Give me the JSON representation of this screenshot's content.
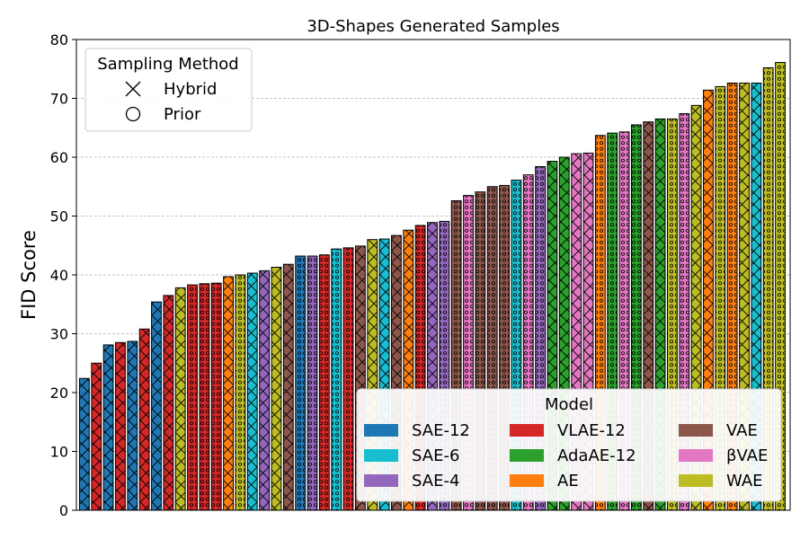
{
  "chart_data": {
    "type": "bar",
    "title": "3D-Shapes Generated Samples",
    "ylabel": "FID Score",
    "xlabel": "",
    "ylim": [
      0,
      80
    ],
    "yticks": [
      0,
      10,
      20,
      30,
      40,
      50,
      60,
      70,
      80
    ],
    "grid": "y-dashed",
    "colors": {
      "SAE-12": "#1f77b4",
      "SAE-6": "#17becf",
      "SAE-4": "#9467bd",
      "VLAE-12": "#d62728",
      "AdaAE-12": "#2ca02c",
      "AE": "#ff7f0e",
      "VAE": "#8c564b",
      "βVAE": "#e377c2",
      "WAE": "#bcbd22"
    },
    "bars": [
      {
        "model": "SAE-12",
        "method": "Hybrid",
        "value": 22.4
      },
      {
        "model": "VLAE-12",
        "method": "Hybrid",
        "value": 25.0
      },
      {
        "model": "SAE-12",
        "method": "Hybrid",
        "value": 28.1
      },
      {
        "model": "VLAE-12",
        "method": "Hybrid",
        "value": 28.5
      },
      {
        "model": "SAE-12",
        "method": "Hybrid",
        "value": 28.7
      },
      {
        "model": "VLAE-12",
        "method": "Hybrid",
        "value": 30.8
      },
      {
        "model": "SAE-12",
        "method": "Hybrid",
        "value": 35.4
      },
      {
        "model": "VLAE-12",
        "method": "Hybrid",
        "value": 36.5
      },
      {
        "model": "WAE",
        "method": "Hybrid",
        "value": 37.8
      },
      {
        "model": "VLAE-12",
        "method": "Prior",
        "value": 38.3
      },
      {
        "model": "VLAE-12",
        "method": "Prior",
        "value": 38.5
      },
      {
        "model": "VLAE-12",
        "method": "Prior",
        "value": 38.6
      },
      {
        "model": "AE",
        "method": "Hybrid",
        "value": 39.7
      },
      {
        "model": "WAE",
        "method": "Prior",
        "value": 40.0
      },
      {
        "model": "SAE-6",
        "method": "Hybrid",
        "value": 40.3
      },
      {
        "model": "SAE-4",
        "method": "Hybrid",
        "value": 40.7
      },
      {
        "model": "WAE",
        "method": "Hybrid",
        "value": 41.3
      },
      {
        "model": "VAE",
        "method": "Hybrid",
        "value": 41.8
      },
      {
        "model": "SAE-12",
        "method": "Prior",
        "value": 43.2
      },
      {
        "model": "SAE-4",
        "method": "Prior",
        "value": 43.2
      },
      {
        "model": "VLAE-12",
        "method": "Prior",
        "value": 43.4
      },
      {
        "model": "SAE-6",
        "method": "Prior",
        "value": 44.4
      },
      {
        "model": "VLAE-12",
        "method": "Prior",
        "value": 44.6
      },
      {
        "model": "VAE",
        "method": "Hybrid",
        "value": 44.9
      },
      {
        "model": "WAE",
        "method": "Hybrid",
        "value": 46.0
      },
      {
        "model": "SAE-6",
        "method": "Hybrid",
        "value": 46.1
      },
      {
        "model": "VAE",
        "method": "Hybrid",
        "value": 46.7
      },
      {
        "model": "AE",
        "method": "Hybrid",
        "value": 47.6
      },
      {
        "model": "VLAE-12",
        "method": "Prior",
        "value": 48.4
      },
      {
        "model": "SAE-4",
        "method": "Hybrid",
        "value": 48.9
      },
      {
        "model": "SAE-4",
        "method": "Prior",
        "value": 49.1
      },
      {
        "model": "VAE",
        "method": "Prior",
        "value": 52.6
      },
      {
        "model": "βVAE",
        "method": "Prior",
        "value": 53.5
      },
      {
        "model": "VAE",
        "method": "Prior",
        "value": 54.1
      },
      {
        "model": "VAE",
        "method": "Prior",
        "value": 55.0
      },
      {
        "model": "VAE",
        "method": "Prior",
        "value": 55.2
      },
      {
        "model": "SAE-6",
        "method": "Prior",
        "value": 56.1
      },
      {
        "model": "βVAE",
        "method": "Prior",
        "value": 57.0
      },
      {
        "model": "SAE-4",
        "method": "Prior",
        "value": 58.4
      },
      {
        "model": "AdaAE-12",
        "method": "Hybrid",
        "value": 59.3
      },
      {
        "model": "AdaAE-12",
        "method": "Hybrid",
        "value": 60.0
      },
      {
        "model": "βVAE",
        "method": "Hybrid",
        "value": 60.6
      },
      {
        "model": "βVAE",
        "method": "Hybrid",
        "value": 60.7
      },
      {
        "model": "AE",
        "method": "Prior",
        "value": 63.7
      },
      {
        "model": "AdaAE-12",
        "method": "Prior",
        "value": 64.1
      },
      {
        "model": "βVAE",
        "method": "Prior",
        "value": 64.3
      },
      {
        "model": "AdaAE-12",
        "method": "Prior",
        "value": 65.5
      },
      {
        "model": "VAE",
        "method": "Hybrid",
        "value": 66.0
      },
      {
        "model": "AdaAE-12",
        "method": "Hybrid",
        "value": 66.5
      },
      {
        "model": "WAE",
        "method": "Prior",
        "value": 66.5
      },
      {
        "model": "βVAE",
        "method": "Prior",
        "value": 67.4
      },
      {
        "model": "WAE",
        "method": "Hybrid",
        "value": 68.8
      },
      {
        "model": "AE",
        "method": "Hybrid",
        "value": 71.4
      },
      {
        "model": "WAE",
        "method": "Prior",
        "value": 72.0
      },
      {
        "model": "AE",
        "method": "Prior",
        "value": 72.6
      },
      {
        "model": "WAE",
        "method": "Hybrid",
        "value": 72.6
      },
      {
        "model": "SAE-6",
        "method": "Hybrid",
        "value": 72.6
      },
      {
        "model": "WAE",
        "method": "Prior",
        "value": 75.2
      },
      {
        "model": "WAE",
        "method": "Prior",
        "value": 76.1
      }
    ],
    "legend_method": {
      "title": "Sampling Method",
      "placement": "top-left",
      "entries": [
        {
          "label": "Hybrid",
          "marker": "x"
        },
        {
          "label": "Prior",
          "marker": "circle"
        }
      ]
    },
    "legend_model": {
      "title": "Model",
      "placement": "bottom-right",
      "entries": [
        "SAE-12",
        "SAE-6",
        "SAE-4",
        "VLAE-12",
        "AdaAE-12",
        "AE",
        "VAE",
        "βVAE",
        "WAE"
      ]
    }
  }
}
